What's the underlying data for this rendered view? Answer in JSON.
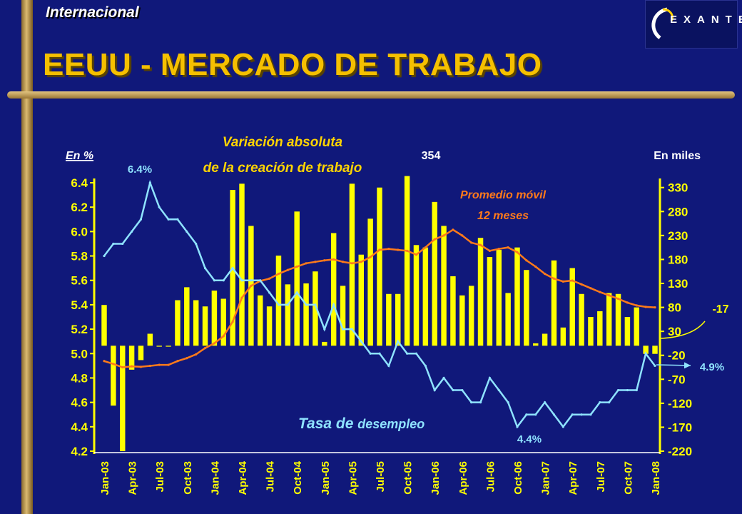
{
  "header": {
    "section_label": "Internacional",
    "title": "EEUU - MERCADO DE TRABAJO",
    "logo_text": "EXANTE"
  },
  "colors": {
    "background": "#10187a",
    "bars": "#ffff00",
    "moving_average": "#ff7a1a",
    "unemployment": "#8fe3ff",
    "title": "#f5c000"
  },
  "chart_data": {
    "type": "bar",
    "categories": [
      "Jan-03",
      "Feb-03",
      "Mar-03",
      "Apr-03",
      "May-03",
      "Jun-03",
      "Jul-03",
      "Aug-03",
      "Sep-03",
      "Oct-03",
      "Nov-03",
      "Dec-03",
      "Jan-04",
      "Feb-04",
      "Mar-04",
      "Apr-04",
      "May-04",
      "Jun-04",
      "Jul-04",
      "Aug-04",
      "Sep-04",
      "Oct-04",
      "Nov-04",
      "Dec-04",
      "Jan-05",
      "Feb-05",
      "Mar-05",
      "Apr-05",
      "May-05",
      "Jun-05",
      "Jul-05",
      "Aug-05",
      "Sep-05",
      "Oct-05",
      "Nov-05",
      "Dec-05",
      "Jan-06",
      "Feb-06",
      "Mar-06",
      "Apr-06",
      "May-06",
      "Jun-06",
      "Jul-06",
      "Aug-06",
      "Sep-06",
      "Oct-06",
      "Nov-06",
      "Dec-06",
      "Jan-07",
      "Feb-07",
      "Mar-07",
      "Apr-07",
      "May-07",
      "Jun-07",
      "Jul-07",
      "Aug-07",
      "Sep-07",
      "Oct-07",
      "Nov-07",
      "Dec-07",
      "Jan-08"
    ],
    "xtick_labels": [
      "Jan-03",
      "Apr-03",
      "Jul-03",
      "Oct-03",
      "Jan-04",
      "Apr-04",
      "Jul-04",
      "Oct-04",
      "Jan-05",
      "Apr-05",
      "Jul-05",
      "Oct-05",
      "Jan-06",
      "Apr-06",
      "Jul-06",
      "Oct-06",
      "Jan-07",
      "Apr-07",
      "Jul-07",
      "Oct-07",
      "Jan-08"
    ],
    "series": [
      {
        "type": "bar",
        "axis": "right",
        "values": [
          85,
          -125,
          -220,
          -50,
          -30,
          25,
          -2,
          -2,
          95,
          122,
          95,
          82,
          115,
          98,
          325,
          338,
          250,
          105,
          82,
          188,
          128,
          280,
          130,
          155,
          8,
          235,
          125,
          338,
          190,
          265,
          330,
          108,
          108,
          354,
          210,
          205,
          300,
          250,
          145,
          105,
          125,
          225,
          185,
          200,
          110,
          205,
          158,
          5,
          25,
          178,
          38,
          162,
          108,
          60,
          72,
          110,
          108,
          60,
          80,
          -17,
          -17
        ]
      },
      {
        "name": "Promedio móvil 12 meses",
        "type": "line",
        "axis": "right",
        "values": [
          -32,
          -38,
          -45,
          -43,
          -44,
          -42,
          -40,
          -40,
          -32,
          -26,
          -18,
          -5,
          5,
          20,
          50,
          100,
          125,
          135,
          140,
          150,
          158,
          165,
          172,
          175,
          178,
          180,
          175,
          172,
          175,
          185,
          200,
          202,
          200,
          198,
          190,
          205,
          222,
          230,
          242,
          230,
          215,
          210,
          198,
          202,
          205,
          195,
          178,
          165,
          150,
          140,
          134,
          136,
          128,
          120,
          112,
          105,
          98,
          90,
          84,
          81,
          80
        ]
      },
      {
        "name": "Tasa de desempleo",
        "type": "line",
        "axis": "left",
        "values": [
          5.8,
          5.9,
          5.9,
          6.0,
          6.1,
          6.4,
          6.2,
          6.1,
          6.1,
          6.0,
          5.9,
          5.7,
          5.6,
          5.6,
          5.7,
          5.6,
          5.6,
          5.6,
          5.5,
          5.4,
          5.4,
          5.5,
          5.4,
          5.4,
          5.2,
          5.4,
          5.2,
          5.2,
          5.1,
          5.0,
          5.0,
          4.9,
          5.1,
          5.0,
          5.0,
          4.9,
          4.7,
          4.8,
          4.7,
          4.7,
          4.6,
          4.6,
          4.8,
          4.7,
          4.6,
          4.4,
          4.5,
          4.5,
          4.6,
          4.5,
          4.4,
          4.5,
          4.5,
          4.5,
          4.6,
          4.6,
          4.7,
          4.7,
          4.7,
          5.0,
          4.9
        ]
      }
    ],
    "left_axis": {
      "label": "En %",
      "ylim": [
        4.2,
        6.4
      ],
      "ticks": [
        "6.4",
        "6.2",
        "6.0",
        "5.8",
        "5.6",
        "5.4",
        "5.2",
        "5.0",
        "4.8",
        "4.6",
        "4.4",
        "4.2"
      ]
    },
    "right_axis": {
      "label": "En miles",
      "ylim": [
        -220,
        340
      ],
      "ticks": [
        "330",
        "280",
        "230",
        "180",
        "130",
        "80",
        "30",
        "-20",
        "-70",
        "-120",
        "-170",
        "-220"
      ]
    },
    "annotations": {
      "bars_title_line1": "Variación absoluta",
      "bars_title_line2": "de la creación de trabajo",
      "ma_line1": "Promedio móvil",
      "ma_line2": "12 meses",
      "unemployment_prefix": "Tasa de ",
      "unemployment_suffix": "desempleo",
      "max_bar": "354",
      "max_rate": "6.4%",
      "min_rate": "4.4%",
      "last_bar": "-17",
      "last_rate": "4.9%"
    },
    "grid": false
  }
}
